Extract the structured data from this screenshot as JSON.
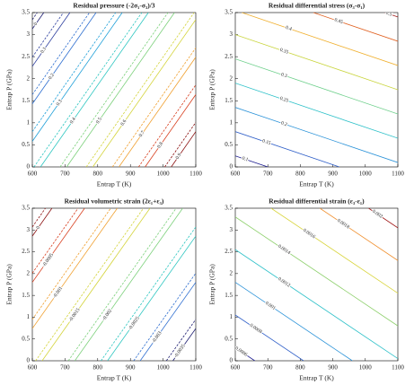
{
  "chart_data": [
    {
      "type": "contour",
      "title": "Residual pressure (-2σ₁-σ₃)/3",
      "xlabel": "Entrap T (K)",
      "ylabel": "Entrap P (GPa)",
      "xlim": [
        600,
        1100
      ],
      "ylim": [
        0,
        3.5
      ],
      "xticks": [
        600,
        700,
        800,
        900,
        1000,
        1100
      ],
      "yticks": [
        0,
        0.5,
        1,
        1.5,
        2,
        2.5,
        3,
        3.5
      ],
      "contours": [
        {
          "level": 0,
          "color": "#1a1a6e",
          "x": [
            600,
            635
          ],
          "y": [
            3.13,
            3.5
          ]
        },
        {
          "level": 0.1,
          "color": "#2c3e9e",
          "x": [
            600,
            715
          ],
          "y": [
            2.28,
            3.5
          ]
        },
        {
          "level": 0.2,
          "color": "#2f6fd0",
          "x": [
            600,
            795
          ],
          "y": [
            1.43,
            3.5
          ]
        },
        {
          "level": 0.3,
          "color": "#1f9fd8",
          "x": [
            600,
            875
          ],
          "y": [
            0.58,
            3.5
          ]
        },
        {
          "level": 0.4,
          "color": "#2cc6c0",
          "x": [
            625,
            955
          ],
          "y": [
            0,
            3.5
          ]
        },
        {
          "level": 0.5,
          "color": "#7bd07a",
          "x": [
            705,
            1035
          ],
          "y": [
            0,
            3.5
          ]
        },
        {
          "level": 0.6,
          "color": "#d4d43a",
          "x": [
            785,
            1100
          ],
          "y": [
            0,
            3.34
          ]
        },
        {
          "level": 0.7,
          "color": "#f0a030",
          "x": [
            865,
            1100
          ],
          "y": [
            0,
            2.49
          ]
        },
        {
          "level": 0.8,
          "color": "#d84020",
          "x": [
            945,
            1100
          ],
          "y": [
            0,
            1.64
          ]
        },
        {
          "level": 0.9,
          "color": "#8b1010",
          "x": [
            1025,
            1100
          ],
          "y": [
            0,
            0.8
          ]
        },
        {
          "dashed": true,
          "color": "#1a1a6e",
          "x": [
            600,
            615
          ],
          "y": [
            3.34,
            3.5
          ]
        },
        {
          "dashed": true,
          "color": "#2c3e9e",
          "x": [
            600,
            695
          ],
          "y": [
            2.49,
            3.5
          ]
        },
        {
          "dashed": true,
          "color": "#2f6fd0",
          "x": [
            600,
            775
          ],
          "y": [
            1.64,
            3.5
          ]
        },
        {
          "dashed": true,
          "color": "#1f9fd8",
          "x": [
            600,
            855
          ],
          "y": [
            0.8,
            3.5
          ]
        },
        {
          "dashed": true,
          "color": "#2cc6c0",
          "x": [
            605,
            935
          ],
          "y": [
            0,
            3.5
          ]
        },
        {
          "dashed": true,
          "color": "#7bd07a",
          "x": [
            685,
            1015
          ],
          "y": [
            0,
            3.5
          ]
        },
        {
          "dashed": true,
          "color": "#d4d43a",
          "x": [
            765,
            1095
          ],
          "y": [
            0,
            3.5
          ]
        },
        {
          "dashed": true,
          "color": "#f0a030",
          "x": [
            845,
            1100
          ],
          "y": [
            0,
            2.7
          ]
        },
        {
          "dashed": true,
          "color": "#d84020",
          "x": [
            925,
            1100
          ],
          "y": [
            0,
            1.86
          ]
        },
        {
          "dashed": true,
          "color": "#8b1010",
          "x": [
            1005,
            1100
          ],
          "y": [
            0,
            1.01
          ]
        }
      ]
    },
    {
      "type": "contour",
      "title": "Residual differential stress (σ₃-σ₁)",
      "xlabel": "Entrap T (K)",
      "ylabel": "Entrap P (GPa)",
      "xlim": [
        600,
        1100
      ],
      "ylim": [
        0,
        3.5
      ],
      "xticks": [
        600,
        700,
        800,
        900,
        1000,
        1100
      ],
      "yticks": [
        0,
        0.5,
        1,
        1.5,
        2,
        2.5,
        3,
        3.5
      ],
      "contours": [
        {
          "level": 0.1,
          "color": "#1a1a8e",
          "x": [
            600,
            700
          ],
          "y": [
            0.25,
            0
          ]
        },
        {
          "level": 0.15,
          "color": "#2f5fc8",
          "x": [
            600,
            920
          ],
          "y": [
            0.8,
            0
          ]
        },
        {
          "level": 0.2,
          "color": "#2a92d8",
          "x": [
            600,
            1100
          ],
          "y": [
            1.35,
            0.1
          ]
        },
        {
          "level": 0.25,
          "color": "#2cc0c8",
          "x": [
            600,
            1100
          ],
          "y": [
            1.9,
            0.65
          ]
        },
        {
          "level": 0.3,
          "color": "#6ccf8a",
          "x": [
            600,
            1100
          ],
          "y": [
            2.45,
            1.2
          ]
        },
        {
          "level": 0.35,
          "color": "#c8d43a",
          "x": [
            600,
            1100
          ],
          "y": [
            3.0,
            1.75
          ]
        },
        {
          "level": 0.4,
          "color": "#f0b030",
          "x": [
            620,
            1100
          ],
          "y": [
            3.5,
            2.3
          ]
        },
        {
          "level": 0.45,
          "color": "#e06020",
          "x": [
            840,
            1100
          ],
          "y": [
            3.5,
            2.85
          ]
        },
        {
          "level": 0.5,
          "color": "#a01818",
          "x": [
            1060,
            1100
          ],
          "y": [
            3.5,
            3.4
          ]
        }
      ]
    },
    {
      "type": "contour",
      "title": "Residual volumetric strain (2ε₁+ε₃)",
      "xlabel": "Entrap T (K)",
      "ylabel": "Entrap P (GPa)",
      "xlim": [
        600,
        1100
      ],
      "ylim": [
        0,
        3.5
      ],
      "xticks": [
        600,
        700,
        800,
        900,
        1000,
        1100
      ],
      "yticks": [
        0,
        0.5,
        1,
        1.5,
        2,
        2.5,
        3,
        3.5
      ],
      "contours": [
        {
          "level": 0,
          "color": "#8b1010",
          "x": [
            600,
            660
          ],
          "y": [
            2.86,
            3.5
          ]
        },
        {
          "level": -0.0005,
          "color": "#d84020",
          "x": [
            600,
            760
          ],
          "y": [
            1.8,
            3.5
          ]
        },
        {
          "level": -0.001,
          "color": "#f0a030",
          "x": [
            600,
            860
          ],
          "y": [
            0.74,
            3.5
          ]
        },
        {
          "level": -0.0015,
          "color": "#d4d43a",
          "x": [
            630,
            960
          ],
          "y": [
            0,
            3.5
          ]
        },
        {
          "level": -0.002,
          "color": "#7bd07a",
          "x": [
            730,
            1060
          ],
          "y": [
            0,
            3.5
          ]
        },
        {
          "level": -0.0025,
          "color": "#2cc6c0",
          "x": [
            830,
            1100
          ],
          "y": [
            0,
            2.86
          ]
        },
        {
          "level": -0.003,
          "color": "#2f6fd0",
          "x": [
            930,
            1100
          ],
          "y": [
            0,
            1.8
          ]
        },
        {
          "level": -0.0035,
          "color": "#1a1a6e",
          "x": [
            1030,
            1100
          ],
          "y": [
            0,
            0.74
          ]
        },
        {
          "dashed": true,
          "color": "#8b1010",
          "x": [
            600,
            640
          ],
          "y": [
            3.07,
            3.5
          ]
        },
        {
          "dashed": true,
          "color": "#d84020",
          "x": [
            600,
            740
          ],
          "y": [
            2.01,
            3.5
          ]
        },
        {
          "dashed": true,
          "color": "#f0a030",
          "x": [
            600,
            840
          ],
          "y": [
            0.95,
            3.5
          ]
        },
        {
          "dashed": true,
          "color": "#d4d43a",
          "x": [
            610,
            940
          ],
          "y": [
            0,
            3.5
          ]
        },
        {
          "dashed": true,
          "color": "#7bd07a",
          "x": [
            710,
            1040
          ],
          "y": [
            0,
            3.5
          ]
        },
        {
          "dashed": true,
          "color": "#2cc6c0",
          "x": [
            810,
            1100
          ],
          "y": [
            0,
            3.07
          ]
        },
        {
          "dashed": true,
          "color": "#2f6fd0",
          "x": [
            910,
            1100
          ],
          "y": [
            0,
            2.01
          ]
        },
        {
          "dashed": true,
          "color": "#1a1a6e",
          "x": [
            1010,
            1100
          ],
          "y": [
            0,
            0.95
          ]
        }
      ]
    },
    {
      "type": "contour",
      "title": "Residual differential strain (ε₃-ε₁)",
      "xlabel": "Entrap T (K)",
      "ylabel": "Entrap P (GPa)",
      "xlim": [
        600,
        1100
      ],
      "ylim": [
        0,
        3.5
      ],
      "xticks": [
        600,
        700,
        800,
        900,
        1000,
        1100
      ],
      "yticks": [
        0,
        0.5,
        1,
        1.5,
        2,
        2.5,
        3,
        3.5
      ],
      "contours": [
        {
          "level": 0.0006,
          "color": "#1a1a8e",
          "x": [
            600,
            660
          ],
          "y": [
            0.3,
            0
          ]
        },
        {
          "level": 0.0008,
          "color": "#2f5fc8",
          "x": [
            600,
            810
          ],
          "y": [
            1.05,
            0
          ]
        },
        {
          "level": 0.001,
          "color": "#2a92d8",
          "x": [
            600,
            960
          ],
          "y": [
            1.8,
            0
          ]
        },
        {
          "level": 0.0012,
          "color": "#2cc0c8",
          "x": [
            600,
            1100
          ],
          "y": [
            2.55,
            0.05
          ]
        },
        {
          "level": 0.0014,
          "color": "#8ccf6a",
          "x": [
            600,
            1100
          ],
          "y": [
            3.3,
            0.8
          ]
        },
        {
          "level": 0.0016,
          "color": "#d8d43a",
          "x": [
            710,
            1100
          ],
          "y": [
            3.5,
            1.55
          ]
        },
        {
          "level": 0.0018,
          "color": "#f09030",
          "x": [
            860,
            1100
          ],
          "y": [
            3.5,
            2.3
          ]
        },
        {
          "level": 0.002,
          "color": "#a01818",
          "x": [
            1010,
            1100
          ],
          "y": [
            3.5,
            3.05
          ]
        }
      ]
    }
  ]
}
